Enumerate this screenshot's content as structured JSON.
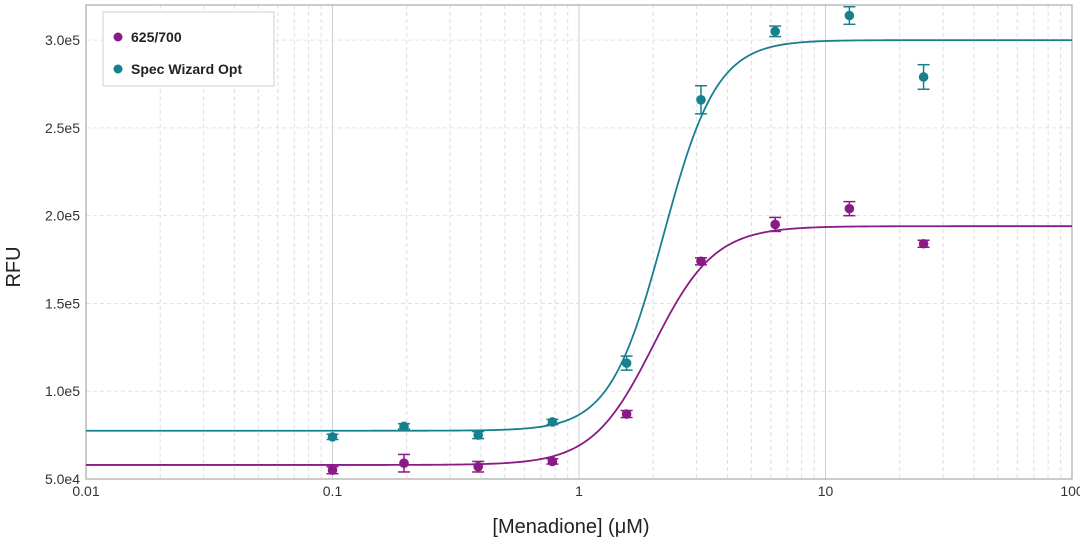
{
  "chart_data": {
    "type": "scatter",
    "xlabel": "[Menadione] (μM)",
    "ylabel": "RFU",
    "x_scale": "log",
    "xlim": [
      0.01,
      100
    ],
    "ylim": [
      50000,
      320000
    ],
    "x_ticks": [
      {
        "value": 0.01,
        "label": "0.01"
      },
      {
        "value": 0.1,
        "label": "0.1"
      },
      {
        "value": 1,
        "label": "1"
      },
      {
        "value": 10,
        "label": "10"
      },
      {
        "value": 100,
        "label": "100"
      }
    ],
    "y_ticks": [
      {
        "value": 50000,
        "label": "5.0e4"
      },
      {
        "value": 100000,
        "label": "1.0e5"
      },
      {
        "value": 150000,
        "label": "1.5e5"
      },
      {
        "value": 200000,
        "label": "2.0e5"
      },
      {
        "value": 250000,
        "label": "2.5e5"
      },
      {
        "value": 300000,
        "label": "3.0e5"
      }
    ],
    "grid": true,
    "legend_position": "top-left",
    "series": [
      {
        "name": "625/700",
        "color": "#8a1a85",
        "x": [
          0.1,
          0.195,
          0.39,
          0.78,
          1.56,
          3.125,
          6.25,
          12.5,
          25
        ],
        "y": [
          55000,
          59000,
          57000,
          60000,
          87000,
          174000,
          195000,
          204000,
          184000
        ],
        "error": [
          2000,
          5000,
          3000,
          1500,
          2000,
          2000,
          4000,
          4000,
          2000
        ],
        "fit": {
          "bottom": 58000,
          "top": 194000,
          "ec50": 2.0,
          "hill": 3.5
        }
      },
      {
        "name": "Spec Wizard Opt",
        "color": "#17808f",
        "x": [
          0.1,
          0.195,
          0.39,
          0.78,
          1.56,
          3.125,
          6.25,
          12.5,
          25
        ],
        "y": [
          74000,
          80000,
          75000,
          82500,
          116000,
          266000,
          305000,
          314000,
          279000
        ],
        "error": [
          1500,
          1500,
          2000,
          1500,
          4000,
          8000,
          3000,
          5000,
          7000
        ],
        "fit": {
          "bottom": 77500,
          "top": 300000,
          "ec50": 2.2,
          "hill": 4.0
        }
      }
    ]
  }
}
